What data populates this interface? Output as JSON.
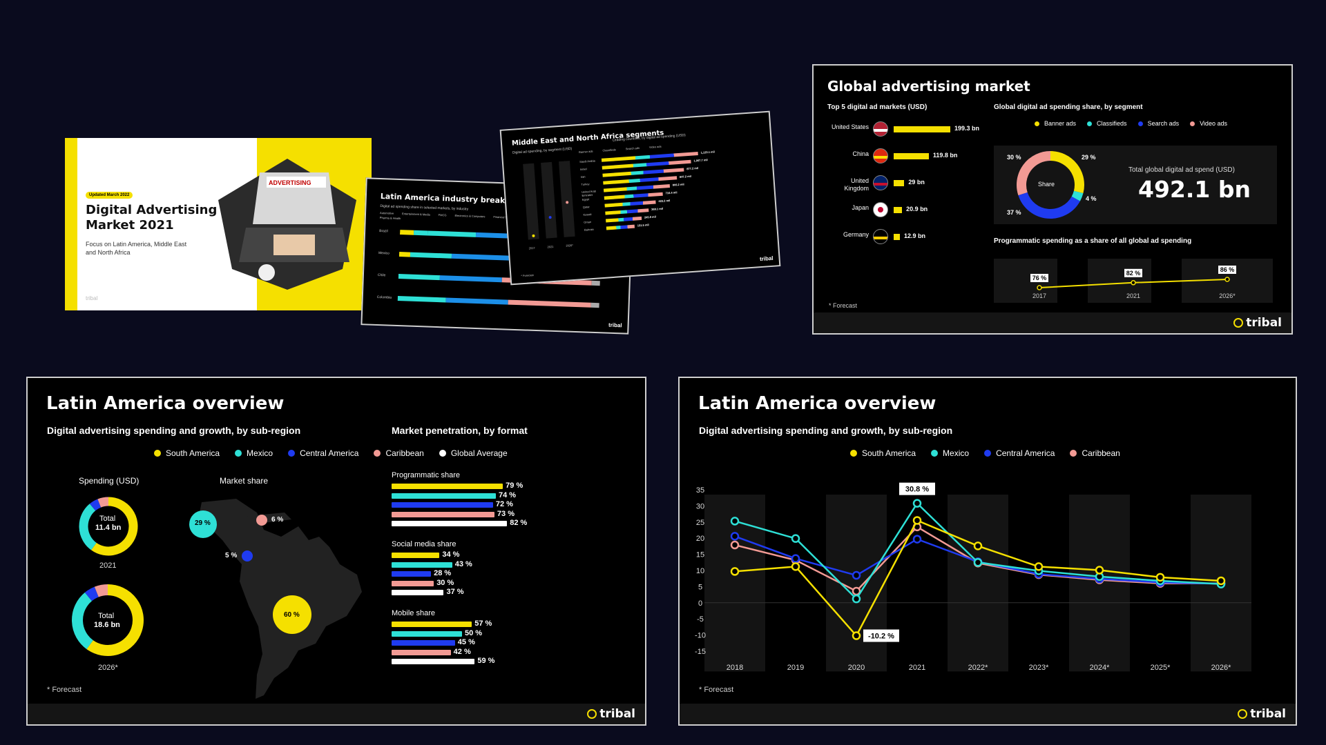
{
  "colors": {
    "south_america": "#f5e000",
    "mexico": "#2ee0d6",
    "central_america": "#1f3bf0",
    "caribbean": "#f29a94",
    "global_average": "#ffffff",
    "background": "#0a0b1e"
  },
  "thumb_cover": {
    "badge": "Updated March 2022",
    "title": "Digital Advertising Market 2021",
    "subtitle": "Focus on Latin America, Middle East and North Africa",
    "brand": "tribal",
    "sign": "ADVERTISING"
  },
  "thumb_latam": {
    "title": "Latin America industry breakdown",
    "subtitle": "Digital ad spending share in selected markets, by industry",
    "legend": [
      "Automotive",
      "Entertainment & Media",
      "FMCG",
      "Electronics & Computers",
      "Financial Services",
      "Pharma & Health"
    ],
    "rows": [
      "Brazil",
      "Mexico",
      "Chile",
      "Colombia"
    ],
    "brand": "tribal"
  },
  "thumb_mena": {
    "title": "Middle East and North Africa segments",
    "left_subtitle": "Digital ad spending, by segment (USD)",
    "right_subtitle": "Leading countries, by digital ad spending (USD)",
    "legend": [
      "Banner ads",
      "Classifieds",
      "Search ads",
      "Video ads"
    ],
    "years": [
      "2017",
      "2021",
      "2026*"
    ],
    "countries": [
      "Saudi Arabia",
      "Israel",
      "Iran",
      "Turkey",
      "United Arab Emirates",
      "Egypt",
      "Qatar",
      "Kuwait",
      "Oman",
      "Bahrain"
    ],
    "values": [
      "1,123.1 mil",
      "1,067.7 mil",
      "877.2 mil",
      "847.2 mil",
      "806.2 mil",
      "716.4 mil",
      "423.2 mil",
      "369.1 mil",
      "245.9 mil",
      "131.5 mil"
    ],
    "footnote": "* Forecast",
    "brand": "tribal"
  },
  "global": {
    "title": "Global advertising market",
    "top5_title": "Top 5 digital ad markets (USD)",
    "markets": [
      {
        "country": "United States",
        "value": "199.3 bn",
        "num": 199.3,
        "flag": "us-flag-icon"
      },
      {
        "country": "China",
        "value": "119.8 bn",
        "num": 119.8,
        "flag": "china-flag-icon"
      },
      {
        "country": "United Kingdom",
        "value": "29 bn",
        "num": 29,
        "flag": "uk-flag-icon"
      },
      {
        "country": "Japan",
        "value": "20.9 bn",
        "num": 20.9,
        "flag": "japan-flag-icon"
      },
      {
        "country": "Germany",
        "value": "12.9 bn",
        "num": 12.9,
        "flag": "germany-flag-icon"
      }
    ],
    "share_title": "Global digital ad spending share, by segment",
    "share_legend": [
      "Banner ads",
      "Classifieds",
      "Search ads",
      "Video ads"
    ],
    "share_values": {
      "banner": "29 %",
      "classifieds": "4 %",
      "search": "37 %",
      "video": "30 %"
    },
    "donut_center": "Share",
    "total_label": "Total global digital ad spend (USD)",
    "total_value": "492.1 bn",
    "prog_title": "Programmatic spending as a share of all global ad spending",
    "prog_years": [
      "2017",
      "2021",
      "2026*"
    ],
    "prog_values": [
      "76 %",
      "82 %",
      "86 %"
    ],
    "footnote": "* Forecast",
    "brand": "tribal"
  },
  "latam_left": {
    "title": "Latin America overview",
    "subtitle": "Digital advertising spending and growth, by sub-region",
    "legend": [
      "South America",
      "Mexico",
      "Central America",
      "Caribbean",
      "Global Average"
    ],
    "spending_title": "Spending (USD)",
    "donut_2021": {
      "total_label": "Total",
      "total_value": "11.4 bn",
      "year": "2021"
    },
    "donut_2026": {
      "total_label": "Total",
      "total_value": "18.6 bn",
      "year": "2026*"
    },
    "market_share_title": "Market share",
    "market_share": {
      "south_america": "60 %",
      "mexico": "29 %",
      "central_america": "5 %",
      "caribbean": "6 %"
    },
    "penetration_title": "Market penetration, by format",
    "groups": [
      {
        "title": "Programmatic share",
        "labels": [
          "79 %",
          "74 %",
          "72 %",
          "73 %",
          "82 %"
        ],
        "values": [
          79,
          74,
          72,
          73,
          82
        ]
      },
      {
        "title": "Social media share",
        "labels": [
          "34 %",
          "43 %",
          "28 %",
          "30 %",
          "37 %"
        ],
        "values": [
          34,
          43,
          28,
          30,
          37
        ]
      },
      {
        "title": "Mobile share",
        "labels": [
          "57 %",
          "50 %",
          "45 %",
          "42 %",
          "59 %"
        ],
        "values": [
          57,
          50,
          45,
          42,
          59
        ]
      }
    ],
    "footnote": "* Forecast",
    "brand": "tribal"
  },
  "latam_right": {
    "title": "Latin America overview",
    "subtitle": "Digital advertising spending and growth, by sub-region",
    "legend": [
      "South America",
      "Mexico",
      "Central America",
      "Caribbean"
    ],
    "footnote": "* Forecast",
    "brand": "tribal",
    "annot_max": "30.8 %",
    "annot_min": "-10.2 %"
  },
  "chart_data": [
    {
      "type": "line",
      "title": "Digital advertising spending and growth, by sub-region",
      "x": [
        "2018",
        "2019",
        "2020",
        "2021",
        "2022*",
        "2023*",
        "2024*",
        "2025*",
        "2026*"
      ],
      "ylim": [
        -15,
        35
      ],
      "yticks": [
        35,
        30,
        25,
        20,
        15,
        10,
        5,
        0,
        -5,
        -10,
        -15
      ],
      "series": [
        {
          "name": "South America",
          "values": [
            9.7,
            11.2,
            -10.2,
            25.5,
            17.6,
            11.2,
            10.1,
            7.9,
            6.8
          ]
        },
        {
          "name": "Mexico",
          "values": [
            25.3,
            19.9,
            1.2,
            30.8,
            12.5,
            9.9,
            8.1,
            6.8,
            5.8
          ]
        },
        {
          "name": "Central America",
          "values": [
            20.6,
            13.7,
            8.5,
            19.7,
            12.7,
            8.9,
            7.4,
            6.3,
            5.9
          ]
        },
        {
          "name": "Caribbean",
          "values": [
            17.9,
            13.2,
            3.6,
            23.5,
            12.3,
            8.7,
            7.1,
            6.0,
            6.0
          ]
        }
      ],
      "annotations": [
        "30.8 %",
        "-10.2 %"
      ]
    },
    {
      "type": "bar",
      "title": "Market penetration, by format",
      "categories": [
        "Programmatic share",
        "Social media share",
        "Mobile share"
      ],
      "series": [
        {
          "name": "South America",
          "values": [
            79,
            34,
            57
          ]
        },
        {
          "name": "Mexico",
          "values": [
            74,
            43,
            50
          ]
        },
        {
          "name": "Central America",
          "values": [
            72,
            28,
            45
          ]
        },
        {
          "name": "Caribbean",
          "values": [
            73,
            30,
            42
          ]
        },
        {
          "name": "Global Average",
          "values": [
            82,
            37,
            59
          ]
        }
      ]
    },
    {
      "type": "bar",
      "title": "Top 5 digital ad markets (USD)",
      "categories": [
        "United States",
        "China",
        "United Kingdom",
        "Japan",
        "Germany"
      ],
      "values": [
        199.3,
        119.8,
        29,
        20.9,
        12.9
      ]
    },
    {
      "type": "pie",
      "title": "Global digital ad spending share, by segment",
      "categories": [
        "Banner ads",
        "Classifieds",
        "Search ads",
        "Video ads"
      ],
      "values": [
        29,
        4,
        37,
        30
      ]
    },
    {
      "type": "line",
      "title": "Programmatic spending as a share of all global ad spending",
      "x": [
        "2017",
        "2021",
        "2026*"
      ],
      "values": [
        76,
        82,
        86
      ]
    },
    {
      "type": "pie",
      "title": "Market share",
      "categories": [
        "South America",
        "Mexico",
        "Central America",
        "Caribbean"
      ],
      "values": [
        60,
        29,
        5,
        6
      ]
    }
  ]
}
